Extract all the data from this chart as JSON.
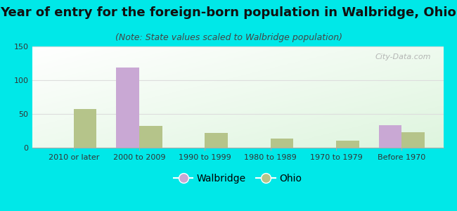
{
  "title": "Year of entry for the foreign-born population in Walbridge, Ohio",
  "subtitle": "(Note: State values scaled to Walbridge population)",
  "categories": [
    "2010 or later",
    "2000 to 2009",
    "1990 to 1999",
    "1980 to 1989",
    "1970 to 1979",
    "Before 1970"
  ],
  "walbridge_values": [
    0,
    119,
    0,
    0,
    0,
    33
  ],
  "ohio_values": [
    57,
    32,
    22,
    14,
    10,
    23
  ],
  "walbridge_color": "#c9a8d4",
  "ohio_color": "#b5c48a",
  "background_outer": "#00e8e8",
  "ylim": [
    0,
    150
  ],
  "yticks": [
    0,
    50,
    100,
    150
  ],
  "bar_width": 0.35,
  "title_fontsize": 13,
  "subtitle_fontsize": 9,
  "legend_fontsize": 10,
  "tick_fontsize": 8,
  "watermark_text": "City-Data.com",
  "watermark_color": "#aaaaaa"
}
